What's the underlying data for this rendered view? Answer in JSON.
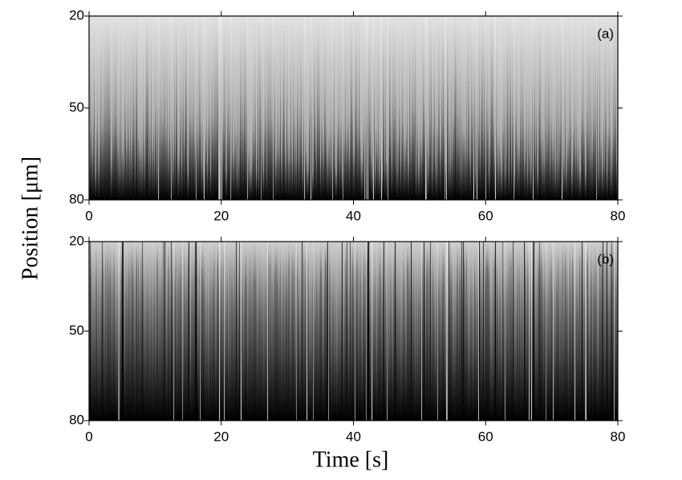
{
  "chart_data": [
    {
      "type": "image",
      "annotation": "(a)",
      "ylabel": "Position  [μm]",
      "xlim": [
        0,
        80
      ],
      "xticks": [
        0,
        20,
        40,
        60,
        80
      ],
      "ylim": [
        80,
        20
      ],
      "yticks": [
        20,
        50,
        80
      ]
    },
    {
      "type": "image",
      "annotation": "(b)",
      "xlabel": "Time   [s]",
      "xlim": [
        0,
        80
      ],
      "xticks": [
        0,
        20,
        40,
        60,
        80
      ],
      "ylim": [
        80,
        20
      ],
      "yticks": [
        20,
        50,
        80
      ]
    }
  ]
}
